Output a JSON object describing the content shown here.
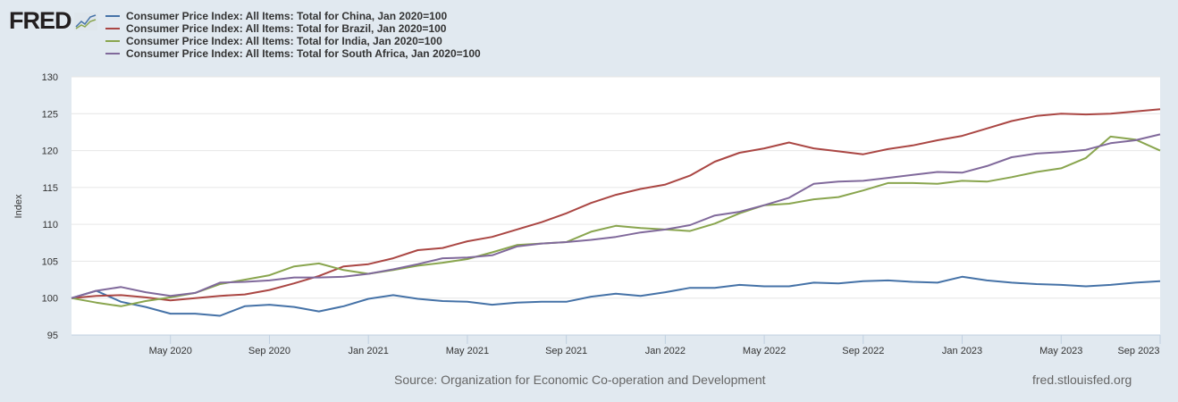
{
  "logo": {
    "text": "FRED"
  },
  "chart_data": {
    "type": "line",
    "title": "",
    "xlabel": "",
    "ylabel": "Index",
    "ylim": [
      95,
      130
    ],
    "yticks": [
      95,
      100,
      105,
      110,
      115,
      120,
      125,
      130
    ],
    "x_start": "2020-01",
    "x_end": "2023-09",
    "frequency": "Monthly",
    "xtick_labels": [
      {
        "label": "May 2020",
        "month_index": 4
      },
      {
        "label": "Sep 2020",
        "month_index": 8
      },
      {
        "label": "Jan 2021",
        "month_index": 12
      },
      {
        "label": "May 2021",
        "month_index": 16
      },
      {
        "label": "Sep 2021",
        "month_index": 20
      },
      {
        "label": "Jan 2022",
        "month_index": 24
      },
      {
        "label": "May 2022",
        "month_index": 28
      },
      {
        "label": "Sep 2022",
        "month_index": 32
      },
      {
        "label": "Jan 2023",
        "month_index": 36
      },
      {
        "label": "May 2023",
        "month_index": 40
      },
      {
        "label": "Sep 2023",
        "month_index": 44
      }
    ],
    "grid": true,
    "legend_placement": "top-left",
    "series": [
      {
        "name": "Consumer Price Index: All Items: Total for China, Jan 2020=100",
        "color": "#4572a7",
        "values": [
          100,
          101.0,
          99.5,
          98.8,
          97.9,
          97.9,
          97.6,
          98.9,
          99.1,
          98.8,
          98.2,
          98.9,
          99.9,
          100.4,
          99.9,
          99.6,
          99.5,
          99.1,
          99.4,
          99.5,
          99.5,
          100.2,
          100.6,
          100.3,
          100.8,
          101.4,
          101.4,
          101.8,
          101.6,
          101.6,
          102.1,
          102.0,
          102.3,
          102.4,
          102.2,
          102.1,
          102.9,
          102.4,
          102.1,
          101.9,
          101.8,
          101.6,
          101.8,
          102.1,
          102.3
        ]
      },
      {
        "name": "Consumer Price Index: All Items: Total for Brazil, Jan 2020=100",
        "color": "#aa4643",
        "values": [
          100,
          100.3,
          100.4,
          100.1,
          99.7,
          100.0,
          100.3,
          100.5,
          101.1,
          102.0,
          103.0,
          104.3,
          104.6,
          105.4,
          106.5,
          106.8,
          107.7,
          108.3,
          109.3,
          110.3,
          111.5,
          112.9,
          114.0,
          114.8,
          115.4,
          116.6,
          118.5,
          119.7,
          120.3,
          121.1,
          120.3,
          119.9,
          119.5,
          120.2,
          120.7,
          121.4,
          122.0,
          123.0,
          124.0,
          124.7,
          125.0,
          124.9,
          125.0,
          125.3,
          125.6
        ]
      },
      {
        "name": "Consumer Price Index: All Items: Total for India, Jan 2020=100",
        "color": "#89a54e",
        "values": [
          100,
          99.4,
          98.9,
          99.6,
          100.1,
          100.7,
          101.9,
          102.5,
          103.1,
          104.3,
          104.7,
          103.8,
          103.3,
          103.8,
          104.4,
          104.8,
          105.3,
          106.2,
          107.2,
          107.4,
          107.6,
          109.0,
          109.8,
          109.5,
          109.3,
          109.1,
          110.1,
          111.5,
          112.6,
          112.8,
          113.4,
          113.7,
          114.6,
          115.6,
          115.6,
          115.5,
          115.9,
          115.8,
          116.4,
          117.1,
          117.6,
          119.0,
          121.9,
          121.5,
          120.0
        ]
      },
      {
        "name": "Consumer Price Index: All Items: Total for South Africa, Jan 2020=100",
        "color": "#80699b",
        "values": [
          100,
          101.0,
          101.5,
          100.8,
          100.3,
          100.7,
          102.1,
          102.2,
          102.4,
          102.8,
          102.8,
          102.9,
          103.3,
          103.9,
          104.6,
          105.4,
          105.5,
          105.8,
          107.0,
          107.4,
          107.6,
          107.9,
          108.3,
          108.9,
          109.3,
          109.9,
          111.2,
          111.7,
          112.6,
          113.6,
          115.5,
          115.8,
          115.9,
          116.3,
          116.7,
          117.1,
          117.0,
          117.9,
          119.1,
          119.6,
          119.8,
          120.1,
          121.0,
          121.4,
          122.2
        ]
      }
    ]
  },
  "footer": {
    "source": "Source: Organization for Economic Co-operation and Development",
    "site": "fred.stlouisfed.org"
  }
}
